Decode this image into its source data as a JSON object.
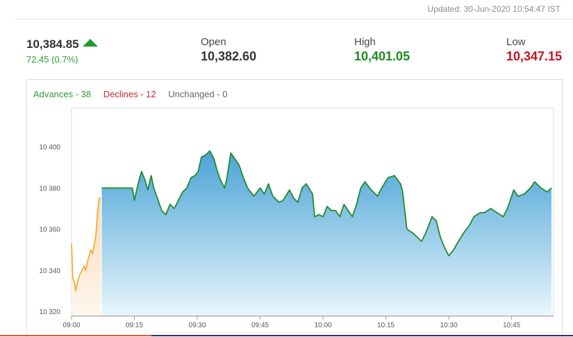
{
  "header": {
    "updated": "Updated: 30-Jun-2020 10:54:47 IST"
  },
  "quote": {
    "last": "10,384.85",
    "change": "72.45 (0.7%)",
    "open_label": "Open",
    "open": "10,382.60",
    "high_label": "High",
    "high": "10,401.05",
    "low_label": "Low",
    "low": "10,347.15"
  },
  "breadth": {
    "advances": "Advances - 38",
    "declines": "Declines - 12",
    "unchanged": "Unchanged - 0"
  },
  "colors": {
    "up": "#2e9b35",
    "down": "#c8282d",
    "line": "#1f8a2a",
    "preopen_line": "#f5a623",
    "fill_top": "#4aa3d6",
    "fill_bottom": "#e8f6fc"
  },
  "chart_data": {
    "type": "area",
    "x_axis": {
      "ticks": [
        "09:00",
        "09:15",
        "09:30",
        "09:45",
        "10:00",
        "10:15",
        "10:30",
        "10:45"
      ],
      "range_minutes": [
        0,
        115
      ]
    },
    "y_axis": {
      "ticks": [
        10320,
        10340,
        10360,
        10380,
        10400
      ],
      "tick_labels": [
        "10 320",
        "10 340",
        "10 360",
        "10 380",
        "10 400"
      ],
      "range": [
        10318,
        10419
      ]
    },
    "grid": false,
    "series": [
      {
        "segment": "pre-open",
        "points": [
          [
            0,
            10353
          ],
          [
            0.3,
            10336
          ],
          [
            0.7,
            10334
          ],
          [
            1,
            10330
          ],
          [
            1.5,
            10335
          ],
          [
            2,
            10338
          ],
          [
            2.5,
            10340
          ],
          [
            3,
            10342
          ],
          [
            3.4,
            10340
          ],
          [
            3.8,
            10344
          ],
          [
            4.2,
            10347
          ],
          [
            4.6,
            10350
          ],
          [
            5,
            10348
          ],
          [
            5.4,
            10352
          ],
          [
            5.8,
            10357
          ],
          [
            6.2,
            10368
          ],
          [
            6.6,
            10375
          ],
          [
            7,
            10375
          ]
        ]
      },
      {
        "segment": "market",
        "points": [
          [
            7.2,
            10380
          ],
          [
            11,
            10380
          ],
          [
            14.5,
            10380
          ],
          [
            15,
            10374
          ],
          [
            16,
            10383
          ],
          [
            16.7,
            10388
          ],
          [
            17.5,
            10384
          ],
          [
            18.2,
            10379
          ],
          [
            19,
            10386
          ],
          [
            19.6,
            10380
          ],
          [
            20.5,
            10375
          ],
          [
            21.5,
            10369
          ],
          [
            22.5,
            10367
          ],
          [
            23.5,
            10372
          ],
          [
            24.5,
            10370
          ],
          [
            25.5,
            10374
          ],
          [
            26.5,
            10378
          ],
          [
            27.5,
            10380
          ],
          [
            28.5,
            10385
          ],
          [
            29.5,
            10386
          ],
          [
            30.2,
            10388
          ],
          [
            31,
            10395
          ],
          [
            32,
            10396
          ],
          [
            33,
            10398
          ],
          [
            34,
            10394
          ],
          [
            34.8,
            10388
          ],
          [
            35.5,
            10384
          ],
          [
            36.5,
            10380
          ],
          [
            37,
            10384
          ],
          [
            38,
            10397
          ],
          [
            39,
            10394
          ],
          [
            40,
            10391
          ],
          [
            41,
            10385
          ],
          [
            42,
            10380
          ],
          [
            43.5,
            10376
          ],
          [
            45,
            10380
          ],
          [
            46,
            10377
          ],
          [
            47,
            10382
          ],
          [
            48,
            10376
          ],
          [
            49.5,
            10373
          ],
          [
            50.5,
            10374
          ],
          [
            52,
            10379
          ],
          [
            53,
            10375
          ],
          [
            54,
            10373
          ],
          [
            55,
            10380
          ],
          [
            56,
            10382
          ],
          [
            57.5,
            10377
          ],
          [
            58,
            10366
          ],
          [
            59,
            10367
          ],
          [
            60,
            10366
          ],
          [
            61,
            10371
          ],
          [
            62,
            10369
          ],
          [
            63,
            10369
          ],
          [
            64,
            10366
          ],
          [
            65,
            10372
          ],
          [
            66,
            10369
          ],
          [
            67,
            10366
          ],
          [
            68,
            10372
          ],
          [
            69,
            10380
          ],
          [
            70,
            10383
          ],
          [
            71.5,
            10379
          ],
          [
            73,
            10376
          ],
          [
            74,
            10380
          ],
          [
            75.5,
            10385
          ],
          [
            77,
            10386
          ],
          [
            78.5,
            10382
          ],
          [
            79,
            10378
          ],
          [
            80,
            10360
          ],
          [
            81.5,
            10358
          ],
          [
            82.5,
            10356
          ],
          [
            83.5,
            10354
          ],
          [
            84.5,
            10358
          ],
          [
            86,
            10366
          ],
          [
            87,
            10364
          ],
          [
            88,
            10356
          ],
          [
            89,
            10351
          ],
          [
            90,
            10347
          ],
          [
            91.2,
            10350
          ],
          [
            92,
            10353
          ],
          [
            93.5,
            10358
          ],
          [
            95,
            10362
          ],
          [
            96,
            10366
          ],
          [
            97.5,
            10368
          ],
          [
            98.5,
            10368
          ],
          [
            100,
            10370
          ],
          [
            101.5,
            10368
          ],
          [
            103,
            10366
          ],
          [
            104,
            10370
          ],
          [
            105.5,
            10379
          ],
          [
            106.5,
            10376
          ],
          [
            108,
            10377
          ],
          [
            109.5,
            10380
          ],
          [
            110.5,
            10383
          ],
          [
            112,
            10380
          ],
          [
            113.5,
            10378
          ],
          [
            114.5,
            10380
          ]
        ]
      }
    ]
  }
}
